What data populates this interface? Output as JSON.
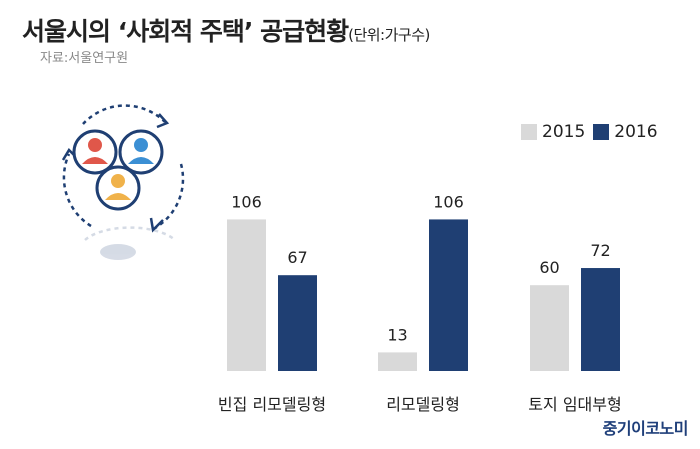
{
  "title": "서울시의 ‘사회적 주택’ 공급현황",
  "unit": "(단위:가구수)",
  "source": "자료:서울연구원",
  "brand": "중기이코노미",
  "colors": {
    "s2015": "#d9d9d9",
    "s2016": "#1f3f73"
  },
  "illustration_icon": "people-cycle-icon",
  "chart_data": {
    "type": "bar",
    "title": "서울시의 ‘사회적 주택’ 공급현황",
    "unit": "(단위:가구수)",
    "categories": [
      "빈집 리모델링형",
      "리모델링형",
      "토지 임대부형"
    ],
    "series": [
      {
        "name": "2015",
        "values": [
          106,
          13,
          60
        ],
        "color": "#d9d9d9"
      },
      {
        "name": "2016",
        "values": [
          67,
          106,
          72
        ],
        "color": "#1f3f73"
      }
    ],
    "legend": "top-right",
    "grid": false,
    "ylim": [
      0,
      120
    ]
  }
}
